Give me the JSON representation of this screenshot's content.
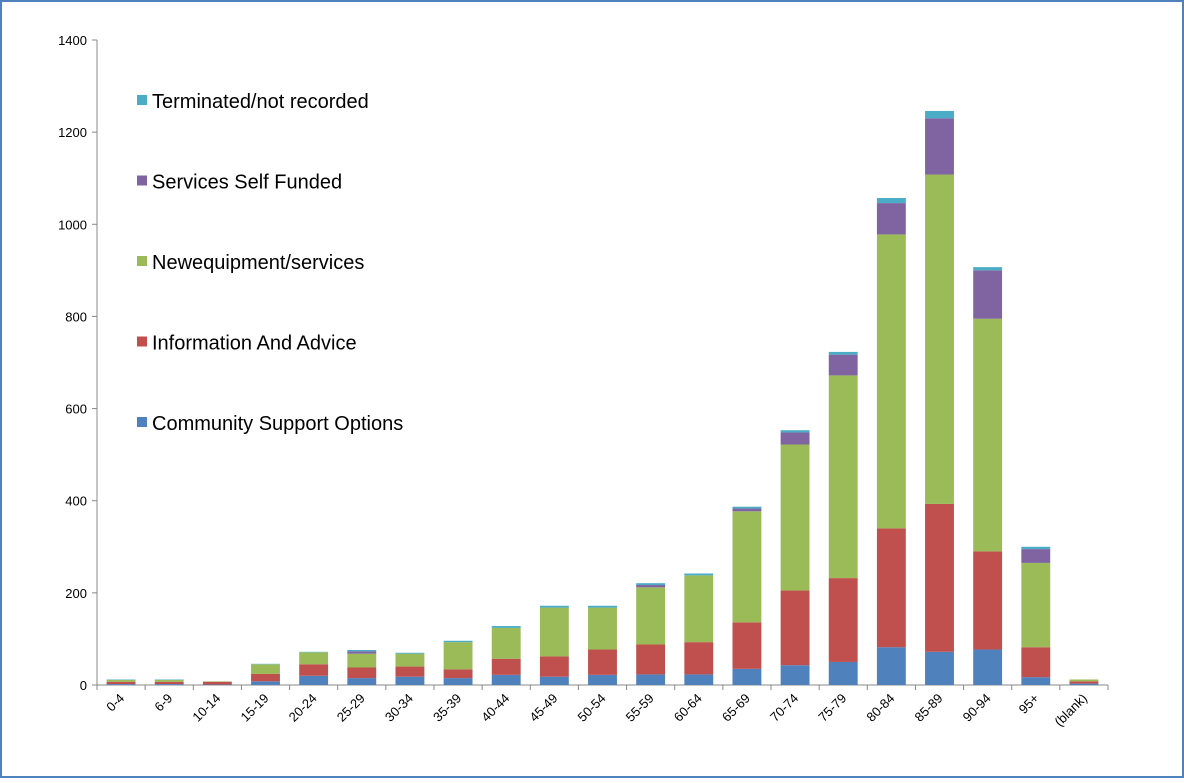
{
  "chart_data": {
    "type": "stacked_bar",
    "categories": [
      "0-4",
      "6-9",
      "10-14",
      "15-19",
      "20-24",
      "25-29",
      "30-34",
      "35-39",
      "40-44",
      "45-49",
      "50-54",
      "55-59",
      "60-64",
      "65-69",
      "70-74",
      "75-79",
      "80-84",
      "85-89",
      "90-94",
      "95+",
      "(blank)"
    ],
    "series": [
      {
        "name": "Community Support Options",
        "color": "#4f81bd",
        "values": [
          2,
          2,
          1,
          8,
          20,
          15,
          18,
          15,
          22,
          18,
          22,
          23,
          23,
          35,
          43,
          50,
          82,
          72,
          77,
          17,
          3
        ]
      },
      {
        "name": "Information And Advice",
        "color": "#c0504d",
        "values": [
          5,
          5,
          6,
          16,
          25,
          23,
          22,
          19,
          35,
          44,
          55,
          65,
          70,
          101,
          162,
          182,
          258,
          321,
          213,
          65,
          5
        ]
      },
      {
        "name": "Newequipment/services",
        "color": "#9bbb59",
        "values": [
          4,
          4,
          1,
          21,
          26,
          30,
          28,
          59,
          67,
          106,
          91,
          124,
          145,
          241,
          317,
          440,
          638,
          715,
          505,
          183,
          4
        ]
      },
      {
        "name": "Services Self Funded",
        "color": "#8064a2",
        "values": [
          0,
          0,
          0,
          0,
          0,
          5,
          0,
          0,
          0,
          0,
          0,
          5,
          0,
          6,
          26,
          45,
          68,
          122,
          105,
          30,
          0
        ]
      },
      {
        "name": "Terminated/not recorded",
        "color": "#4bacc6",
        "values": [
          1,
          1,
          0,
          1,
          1,
          3,
          2,
          3,
          4,
          4,
          4,
          4,
          4,
          4,
          5,
          6,
          11,
          16,
          7,
          5,
          0
        ]
      }
    ],
    "ylim": [
      0,
      1400
    ],
    "yticks": [
      0,
      200,
      400,
      600,
      800,
      1000,
      1200,
      1400
    ],
    "grid": false,
    "legend": "upper left"
  }
}
